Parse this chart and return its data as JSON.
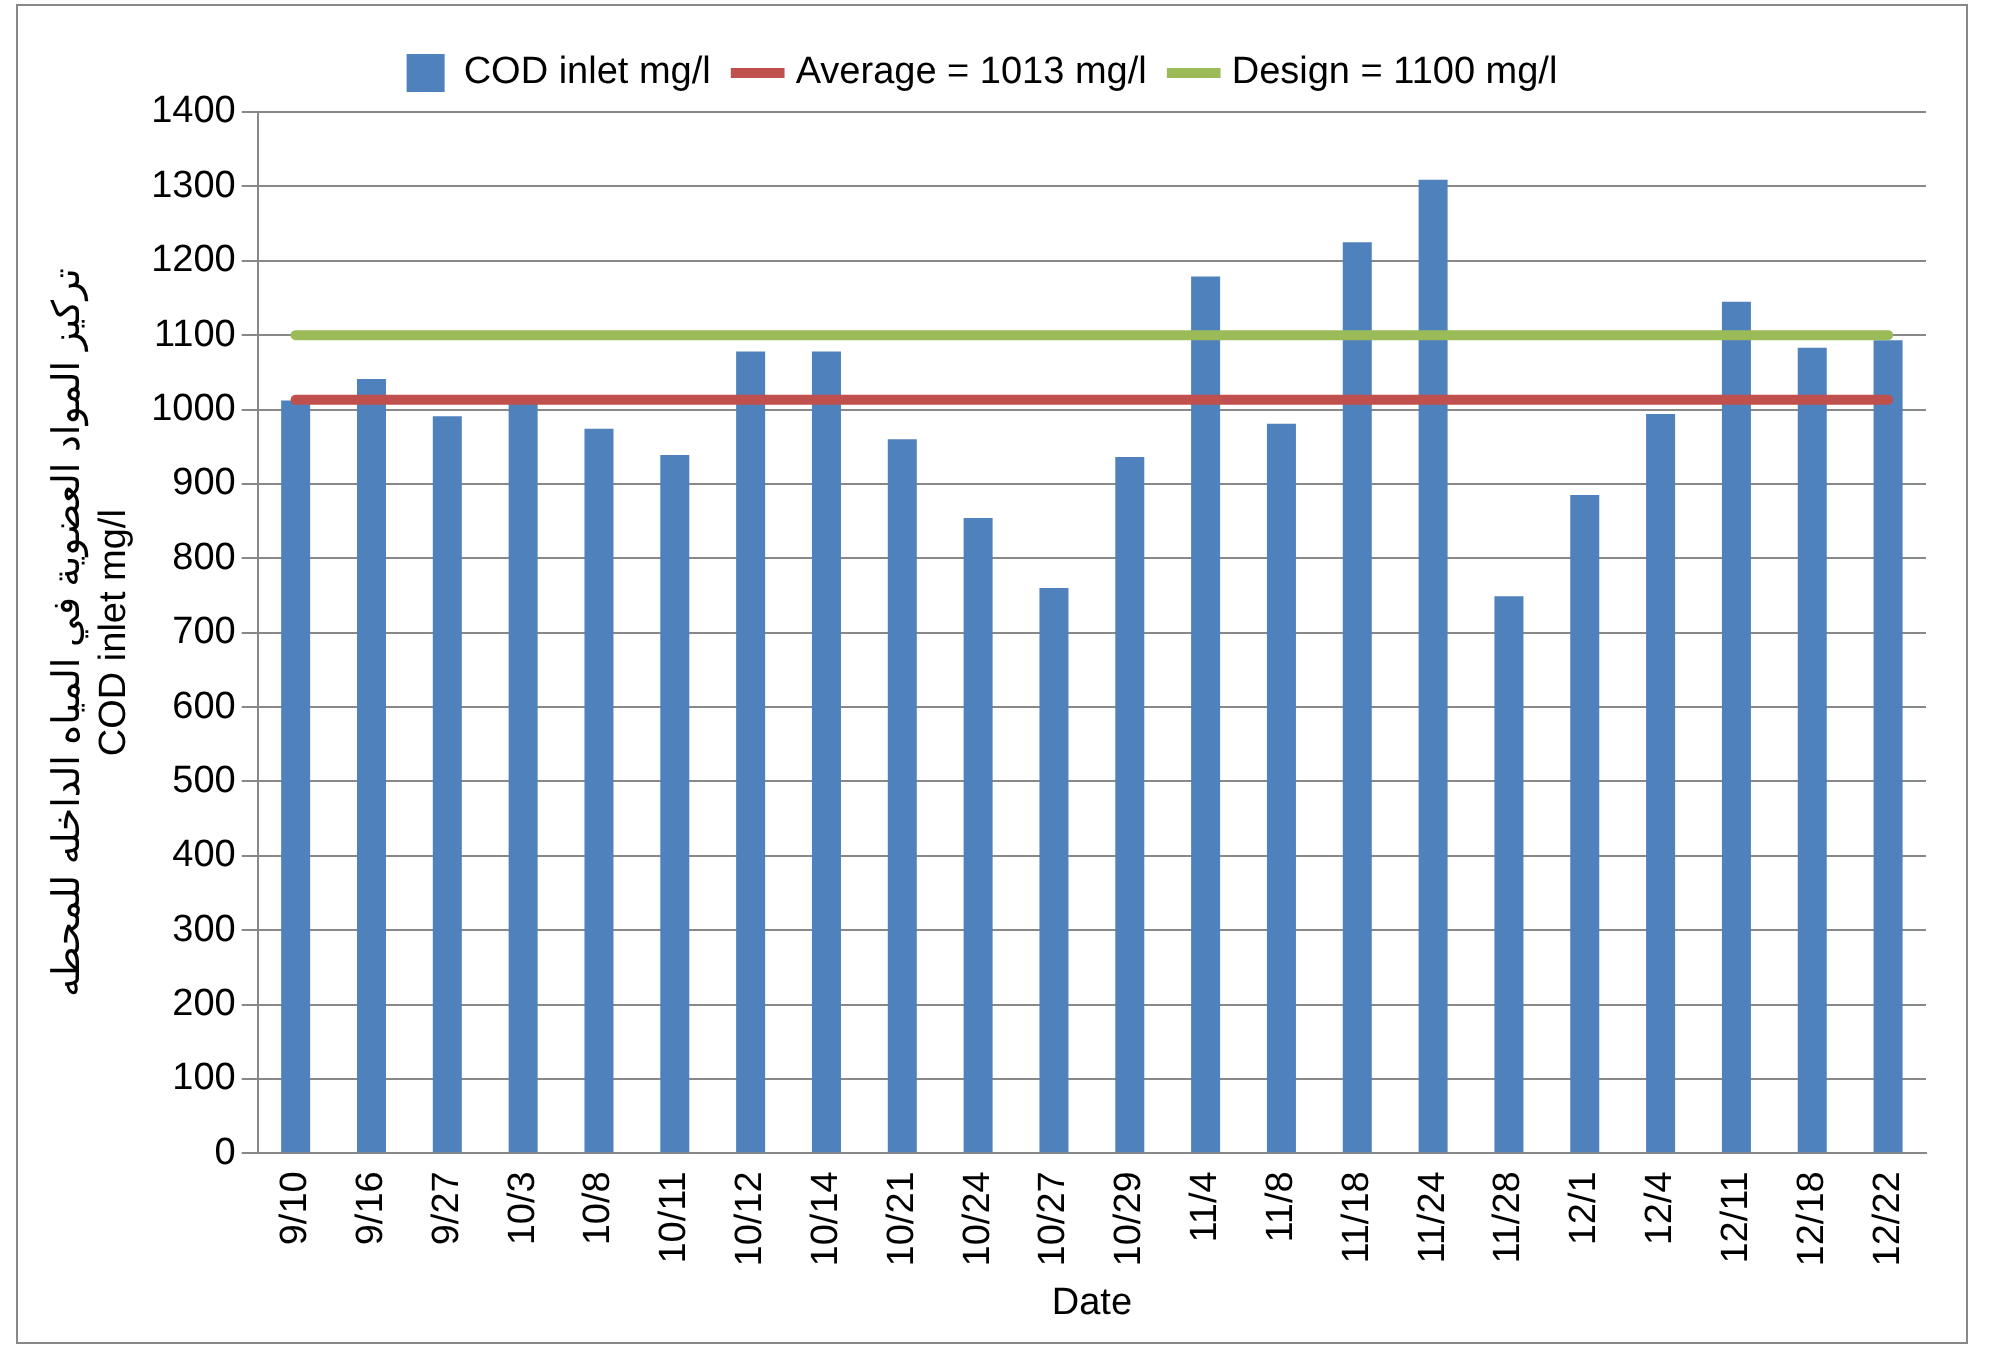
{
  "chart_data": {
    "type": "bar",
    "xlabel": "Date",
    "ylabel": "تركيز المواد العضوية في المياه الداخله للمحطه\nCOD inlet mg/l",
    "categories": [
      "9/10",
      "9/16",
      "9/27",
      "10/3",
      "10/8",
      "10/11",
      "10/12",
      "10/14",
      "10/21",
      "10/24",
      "10/27",
      "10/29",
      "11/4",
      "11/8",
      "11/18",
      "11/24",
      "11/28",
      "12/1",
      "12/4",
      "12/11",
      "12/18",
      "12/22"
    ],
    "series": [
      {
        "name": "COD inlet mg/l",
        "color": "#4f81bd",
        "values": [
          1012,
          1041,
          991,
          1008,
          974,
          939,
          1078,
          1078,
          960,
          854,
          760,
          936,
          1179,
          981,
          1225,
          1309,
          749,
          885,
          994,
          1145,
          1083,
          1093
        ]
      }
    ],
    "ref_lines": [
      {
        "axis": "y",
        "value": 1013,
        "label": "Average = 1013 mg/l",
        "color": "#c0504d"
      },
      {
        "axis": "y",
        "value": 1100,
        "label": "Design = 1100 mg/l",
        "color": "#9bbb59"
      }
    ],
    "ylim": [
      0,
      1400
    ],
    "yticks": [
      0,
      100,
      200,
      300,
      400,
      500,
      600,
      700,
      800,
      900,
      1000,
      1100,
      1200,
      1300,
      1400
    ],
    "grid": "y",
    "legend": "top"
  }
}
